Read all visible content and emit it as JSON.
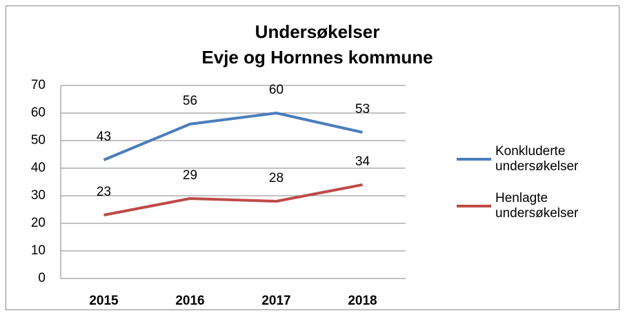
{
  "chart_data": {
    "type": "line",
    "title": "Undersøkelser",
    "subtitle": "Evje og Hornnes kommune",
    "categories": [
      "2015",
      "2016",
      "2017",
      "2018"
    ],
    "series": [
      {
        "name": "Konkluderte undersøkelser",
        "color": "#4a7ebb",
        "values": [
          43,
          56,
          60,
          53
        ]
      },
      {
        "name": "Henlagte undersøkelser",
        "color": "#be4b48",
        "values": [
          23,
          29,
          28,
          34
        ]
      }
    ],
    "ylim": [
      0,
      70
    ],
    "yticks": [
      0,
      10,
      20,
      30,
      40,
      50,
      60,
      70
    ],
    "grid": true,
    "legend": "right",
    "data_labels": true
  }
}
